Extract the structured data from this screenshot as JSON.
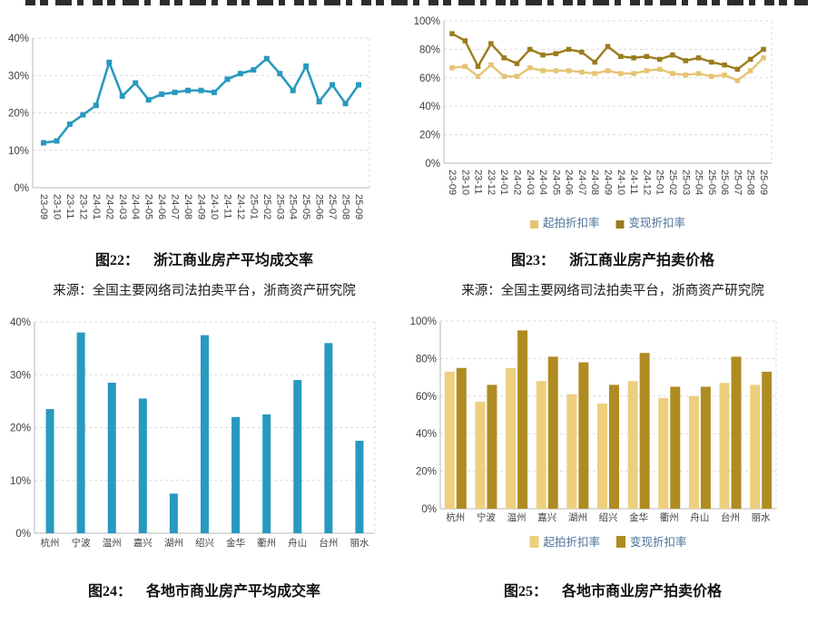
{
  "palette": {
    "teal": "#2899C0",
    "gold_light_line": "#E5C473",
    "gold_dark_line": "#9B7C1D",
    "gold_light_bar": "#EDCF7E",
    "gold_dark_bar": "#AF8C22",
    "legend_text": "#4C7298",
    "tick_text": "#3F3F3F",
    "grid": "#DBDBDB",
    "axis": "#B7B7B7"
  },
  "captions": [
    {
      "tag": "图22：",
      "text": "浙江商业房产平均成交率"
    },
    {
      "tag": "图23：",
      "text": "浙江商业房产拍卖价格"
    },
    {
      "tag": "图24：",
      "text": "各地市商业房产平均成交率"
    },
    {
      "tag": "图25：",
      "text": "各地市商业房产拍卖价格"
    }
  ],
  "sources": {
    "left": "来源：全国主要网络司法拍卖平台，浙商资产研究院",
    "right": "来源：全国主要网络司法拍卖平台，浙商资产研究院"
  },
  "chart_data": [
    {
      "id": "fig22",
      "type": "line",
      "title": "浙江商业房产平均成交率",
      "x": [
        "23-09",
        "23-10",
        "23-11",
        "23-12",
        "24-01",
        "24-02",
        "24-03",
        "24-04",
        "24-05",
        "24-06",
        "24-07",
        "24-08",
        "24-09",
        "24-10",
        "24-11",
        "24-12",
        "25-01",
        "25-02",
        "25-03",
        "25-04",
        "25-05",
        "25-06",
        "25-07",
        "25-08",
        "25-09"
      ],
      "series": [
        {
          "name": "平均成交率",
          "color": "#2899C0",
          "values": [
            12,
            12.5,
            17,
            19.5,
            22,
            33.5,
            24.5,
            28,
            23.5,
            25,
            25.5,
            26,
            26,
            25.5,
            29,
            30.5,
            31.5,
            34.5,
            30.5,
            26,
            32.5,
            23,
            27.5,
            22.5,
            27.5
          ]
        }
      ],
      "ylim": [
        0,
        40
      ],
      "ystep": 10,
      "grid": true,
      "legend_position": null
    },
    {
      "id": "fig23",
      "type": "line",
      "title": "浙江商业房产拍卖价格",
      "x": [
        "23-09",
        "23-10",
        "23-11",
        "23-12",
        "24-01",
        "24-02",
        "24-03",
        "24-04",
        "24-05",
        "24-06",
        "24-07",
        "24-08",
        "24-09",
        "24-10",
        "24-11",
        "24-12",
        "25-01",
        "25-02",
        "25-03",
        "25-04",
        "25-05",
        "25-06",
        "25-07",
        "25-08",
        "25-09"
      ],
      "series": [
        {
          "name": "起拍折扣率",
          "color": "#E5C473",
          "values": [
            67,
            68,
            61,
            69,
            61,
            61,
            67,
            65,
            65,
            65,
            64,
            63,
            65,
            63,
            63,
            65,
            66,
            63,
            62,
            63,
            61,
            62,
            58,
            65,
            74
          ]
        },
        {
          "name": "变现折扣率",
          "color": "#9B7C1D",
          "values": [
            91,
            86,
            68,
            84,
            74,
            70,
            80,
            76,
            77,
            80,
            78,
            71,
            82,
            75,
            74,
            75,
            73,
            76,
            72,
            74,
            71,
            69,
            66,
            73,
            80
          ]
        }
      ],
      "ylim": [
        0,
        100
      ],
      "ystep": 20,
      "grid": true,
      "legend_position": "bottom"
    },
    {
      "id": "fig24",
      "type": "bar",
      "title": "各地市商业房产平均成交率",
      "categories": [
        "杭州",
        "宁波",
        "温州",
        "嘉兴",
        "湖州",
        "绍兴",
        "金华",
        "衢州",
        "舟山",
        "台州",
        "丽水"
      ],
      "series": [
        {
          "name": "平均成交率",
          "color": "#2899C0",
          "values": [
            23.5,
            38,
            28.5,
            25.5,
            7.5,
            37.5,
            22,
            22.5,
            29,
            36,
            17.5
          ]
        }
      ],
      "ylim": [
        0,
        40
      ],
      "ystep": 10,
      "grid": true,
      "legend_position": null
    },
    {
      "id": "fig25",
      "type": "bar",
      "title": "各地市商业房产拍卖价格",
      "categories": [
        "杭州",
        "宁波",
        "温州",
        "嘉兴",
        "湖州",
        "绍兴",
        "金华",
        "衢州",
        "舟山",
        "台州",
        "丽水"
      ],
      "series": [
        {
          "name": "起拍折扣率",
          "color": "#EDCF7E",
          "values": [
            73,
            57,
            75,
            68,
            61,
            56,
            68,
            59,
            60,
            67,
            66
          ]
        },
        {
          "name": "变现折扣率",
          "color": "#AF8C22",
          "values": [
            75,
            66,
            95,
            81,
            78,
            66,
            83,
            65,
            65,
            81,
            73
          ]
        }
      ],
      "ylim": [
        0,
        100
      ],
      "ystep": 20,
      "grid": true,
      "legend_position": "bottom"
    }
  ]
}
